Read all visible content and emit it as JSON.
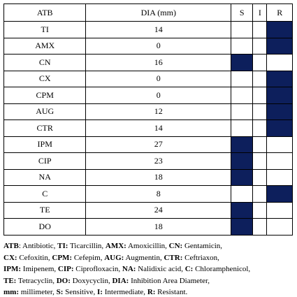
{
  "table": {
    "header": [
      "ATB",
      "DIA (mm)",
      "S",
      "I",
      "R"
    ],
    "fill": "#0d1f5c",
    "rows": [
      {
        "atb": "TI",
        "dia": 14,
        "result": "R"
      },
      {
        "atb": "AMX",
        "dia": 0,
        "result": "R"
      },
      {
        "atb": "CN",
        "dia": 16,
        "result": "S"
      },
      {
        "atb": "CX",
        "dia": 0,
        "result": "R"
      },
      {
        "atb": "CPM",
        "dia": 0,
        "result": "R"
      },
      {
        "atb": "AUG",
        "dia": 12,
        "result": "R"
      },
      {
        "atb": "CTR",
        "dia": 14,
        "result": "R"
      },
      {
        "atb": "IPM",
        "dia": 27,
        "result": "S"
      },
      {
        "atb": "CIP",
        "dia": 23,
        "result": "S"
      },
      {
        "atb": "NA",
        "dia": 18,
        "result": "S"
      },
      {
        "atb": "C",
        "dia": 8,
        "result": "R"
      },
      {
        "atb": "TE",
        "dia": 24,
        "result": "S"
      },
      {
        "atb": "DO",
        "dia": 18,
        "result": "S"
      }
    ]
  },
  "footnote": {
    "lines": [
      [
        {
          "abbr": "ATB",
          "text": ": Antibiotic, "
        },
        {
          "abbr": "TI:",
          "text": " Ticarcillin, "
        },
        {
          "abbr": "AMX:",
          "text": " Amoxicillin, "
        },
        {
          "abbr": "CN:",
          "text": " Gentamicin,"
        }
      ],
      [
        {
          "abbr": "CX:",
          "text": " Cefoxitin, "
        },
        {
          "abbr": "CPM:",
          "text": " Cefepim, "
        },
        {
          "abbr": "AUG:",
          "text": " Augmentin, "
        },
        {
          "abbr": "CTR:",
          "text": " Ceftriaxon,"
        }
      ],
      [
        {
          "abbr": "IPM:",
          "text": " Imipenem, "
        },
        {
          "abbr": "CIP:",
          "text": " Ciprofloxacin, "
        },
        {
          "abbr": "NA:",
          "text": " Nalidixic acid, "
        },
        {
          "abbr": "C:",
          "text": " Chloramphenicol,"
        }
      ],
      [
        {
          "abbr": "TE:",
          "text": " Tetracyclin, "
        },
        {
          "abbr": "DO:",
          "text": " Doxycyclin, "
        },
        {
          "abbr": "DIA:",
          "text": " Inhibition Area Diameter,"
        }
      ],
      [
        {
          "abbr": "mm:",
          "text": " millimeter, "
        },
        {
          "abbr": "S:",
          "text": " Sensitive, "
        },
        {
          "abbr": "I:",
          "text": " Intermediate, "
        },
        {
          "abbr": "R:",
          "text": " Resistant."
        }
      ]
    ]
  }
}
